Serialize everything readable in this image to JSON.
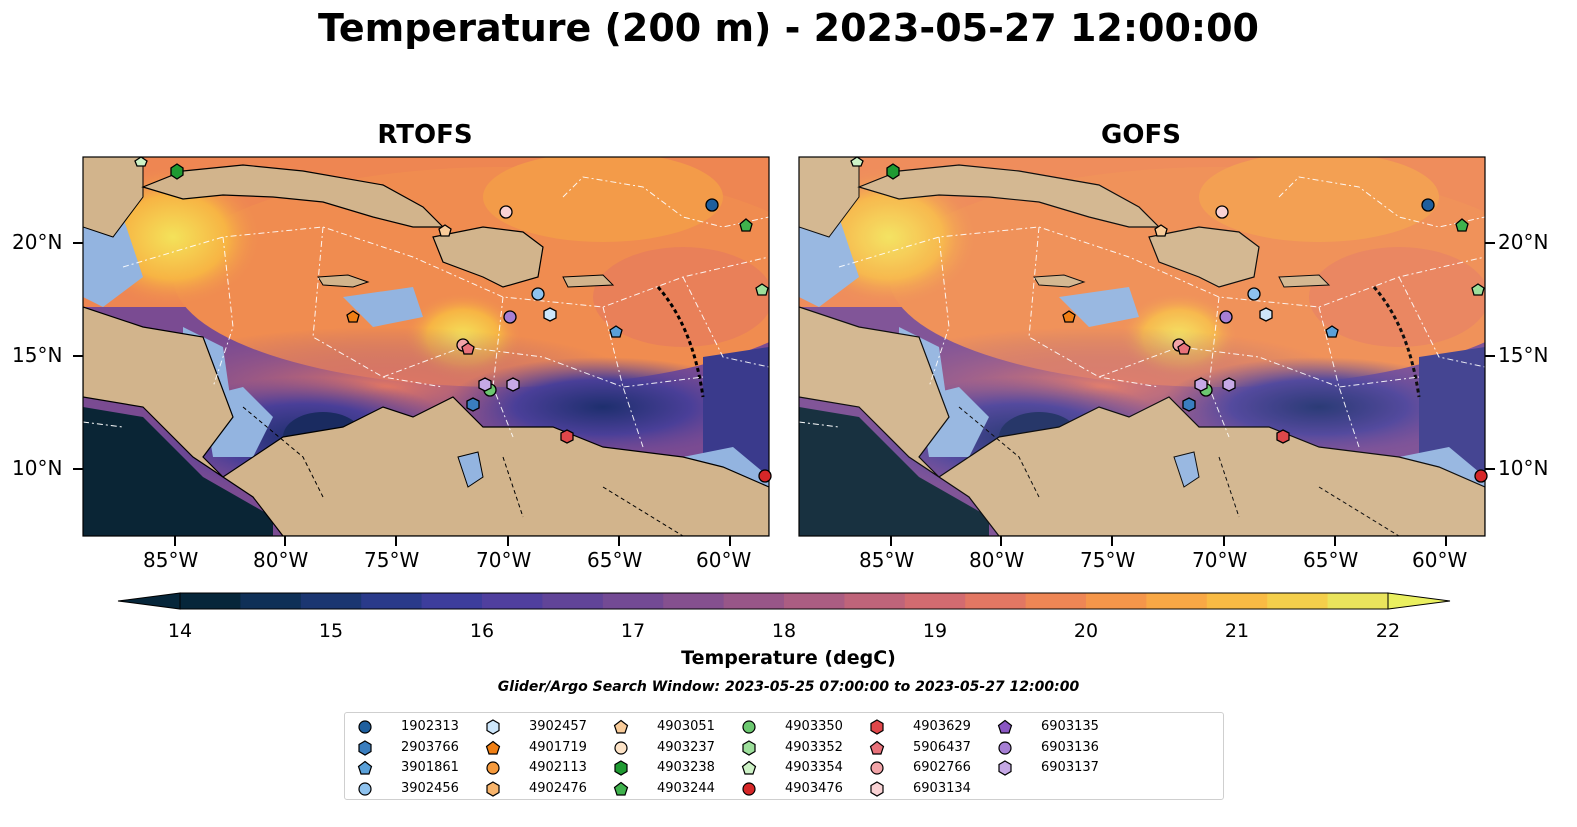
{
  "title": "Temperature (200 m) - 2023-05-27 12:00:00",
  "panels": [
    {
      "title": "RTOFS"
    },
    {
      "title": "GOFS"
    }
  ],
  "axes": {
    "x_ticks": [
      "85°W",
      "80°W",
      "75°W",
      "70°W",
      "65°W",
      "60°W"
    ],
    "y_ticks": [
      "20°N",
      "15°N",
      "10°N"
    ]
  },
  "colorbar": {
    "label": "Temperature (degC)",
    "ticks": [
      "14",
      "15",
      "16",
      "17",
      "18",
      "19",
      "20",
      "21",
      "22"
    ],
    "colors": [
      "#06263a",
      "#0f3057",
      "#1b3671",
      "#2a3a8a",
      "#3d3d9c",
      "#503f9e",
      "#614498",
      "#734a94",
      "#85508f",
      "#985688",
      "#ab5d82",
      "#bf647a",
      "#d26b70",
      "#e27763",
      "#ee8655",
      "#f5964a",
      "#f9a845",
      "#f9bb44",
      "#f4cf4b",
      "#eae45c"
    ]
  },
  "search_window": "Glider/Argo Search Window: 2023-05-25 07:00:00 to 2023-05-27 12:00:00",
  "legend": [
    {
      "id": "1902313",
      "shape": "circle",
      "color": "#1f5f9e"
    },
    {
      "id": "2903766",
      "shape": "hexagon",
      "color": "#3a7ebf"
    },
    {
      "id": "3901861",
      "shape": "pentagon",
      "color": "#5aa0d8"
    },
    {
      "id": "3902456",
      "shape": "circle",
      "color": "#8ec2ee"
    },
    {
      "id": "3902457",
      "shape": "hexagon",
      "color": "#cde6fa"
    },
    {
      "id": "4901719",
      "shape": "pentagon",
      "color": "#f07f14"
    },
    {
      "id": "4902113",
      "shape": "circle",
      "color": "#f59a3d"
    },
    {
      "id": "4902476",
      "shape": "hexagon",
      "color": "#f8b46b"
    },
    {
      "id": "4903051",
      "shape": "pentagon",
      "color": "#f9cc9a"
    },
    {
      "id": "4903237",
      "shape": "circle",
      "color": "#fde3c7"
    },
    {
      "id": "4903238",
      "shape": "hexagon",
      "color": "#1f9a32"
    },
    {
      "id": "4903244",
      "shape": "pentagon",
      "color": "#3fb24d"
    },
    {
      "id": "4903350",
      "shape": "circle",
      "color": "#6cc870"
    },
    {
      "id": "4903352",
      "shape": "hexagon",
      "color": "#9ddf9b"
    },
    {
      "id": "4903354",
      "shape": "pentagon",
      "color": "#cdf2c6"
    },
    {
      "id": "4903476",
      "shape": "circle",
      "color": "#d62728"
    },
    {
      "id": "4903629",
      "shape": "hexagon",
      "color": "#e0474a"
    },
    {
      "id": "5906437",
      "shape": "pentagon",
      "color": "#e8727a"
    },
    {
      "id": "6902766",
      "shape": "circle",
      "color": "#f2a4a8"
    },
    {
      "id": "6903134",
      "shape": "hexagon",
      "color": "#f9d2d4"
    },
    {
      "id": "6903135",
      "shape": "pentagon",
      "color": "#8a57c2"
    },
    {
      "id": "6903136",
      "shape": "circle",
      "color": "#a67fd4"
    },
    {
      "id": "6903137",
      "shape": "hexagon",
      "color": "#c6a9e6"
    }
  ],
  "map_colors": {
    "land": "#d2b48c",
    "shelf": "#93b4e0",
    "deep": "#0a2535"
  }
}
